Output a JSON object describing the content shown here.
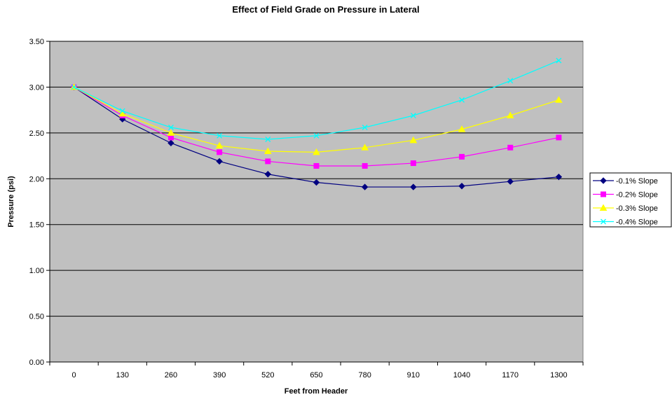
{
  "chart_data": {
    "type": "line",
    "title": "Effect of Field Grade on Pressure in Lateral",
    "xlabel": "Feet from Header",
    "ylabel": "Pressure (psi)",
    "categories": [
      "0",
      "130",
      "260",
      "390",
      "520",
      "650",
      "780",
      "910",
      "1040",
      "1170",
      "1300"
    ],
    "ylim": [
      0,
      3.5
    ],
    "yticks": [
      "0.00",
      "0.50",
      "1.00",
      "1.50",
      "2.00",
      "2.50",
      "3.00",
      "3.50"
    ],
    "grid": "horizontal major gridlines",
    "legend_position": "right",
    "plot_background": "#c0c0c0",
    "series": [
      {
        "name": "-0.1% Slope",
        "color": "#000080",
        "marker": "diamond",
        "values": [
          3.0,
          2.65,
          2.39,
          2.19,
          2.05,
          1.96,
          1.91,
          1.91,
          1.92,
          1.97,
          2.02
        ]
      },
      {
        "name": "-0.2% Slope",
        "color": "#ff00ff",
        "marker": "square",
        "values": [
          3.0,
          2.69,
          2.45,
          2.29,
          2.19,
          2.14,
          2.14,
          2.17,
          2.24,
          2.34,
          2.45
        ]
      },
      {
        "name": "-0.3% Slope",
        "color": "#ffff00",
        "marker": "triangle",
        "values": [
          3.0,
          2.71,
          2.5,
          2.36,
          2.3,
          2.29,
          2.34,
          2.42,
          2.54,
          2.69,
          2.86
        ]
      },
      {
        "name": "-0.4% Slope",
        "color": "#00ffff",
        "marker": "x",
        "values": [
          3.0,
          2.74,
          2.56,
          2.47,
          2.43,
          2.47,
          2.56,
          2.69,
          2.86,
          3.07,
          3.29
        ]
      }
    ]
  }
}
